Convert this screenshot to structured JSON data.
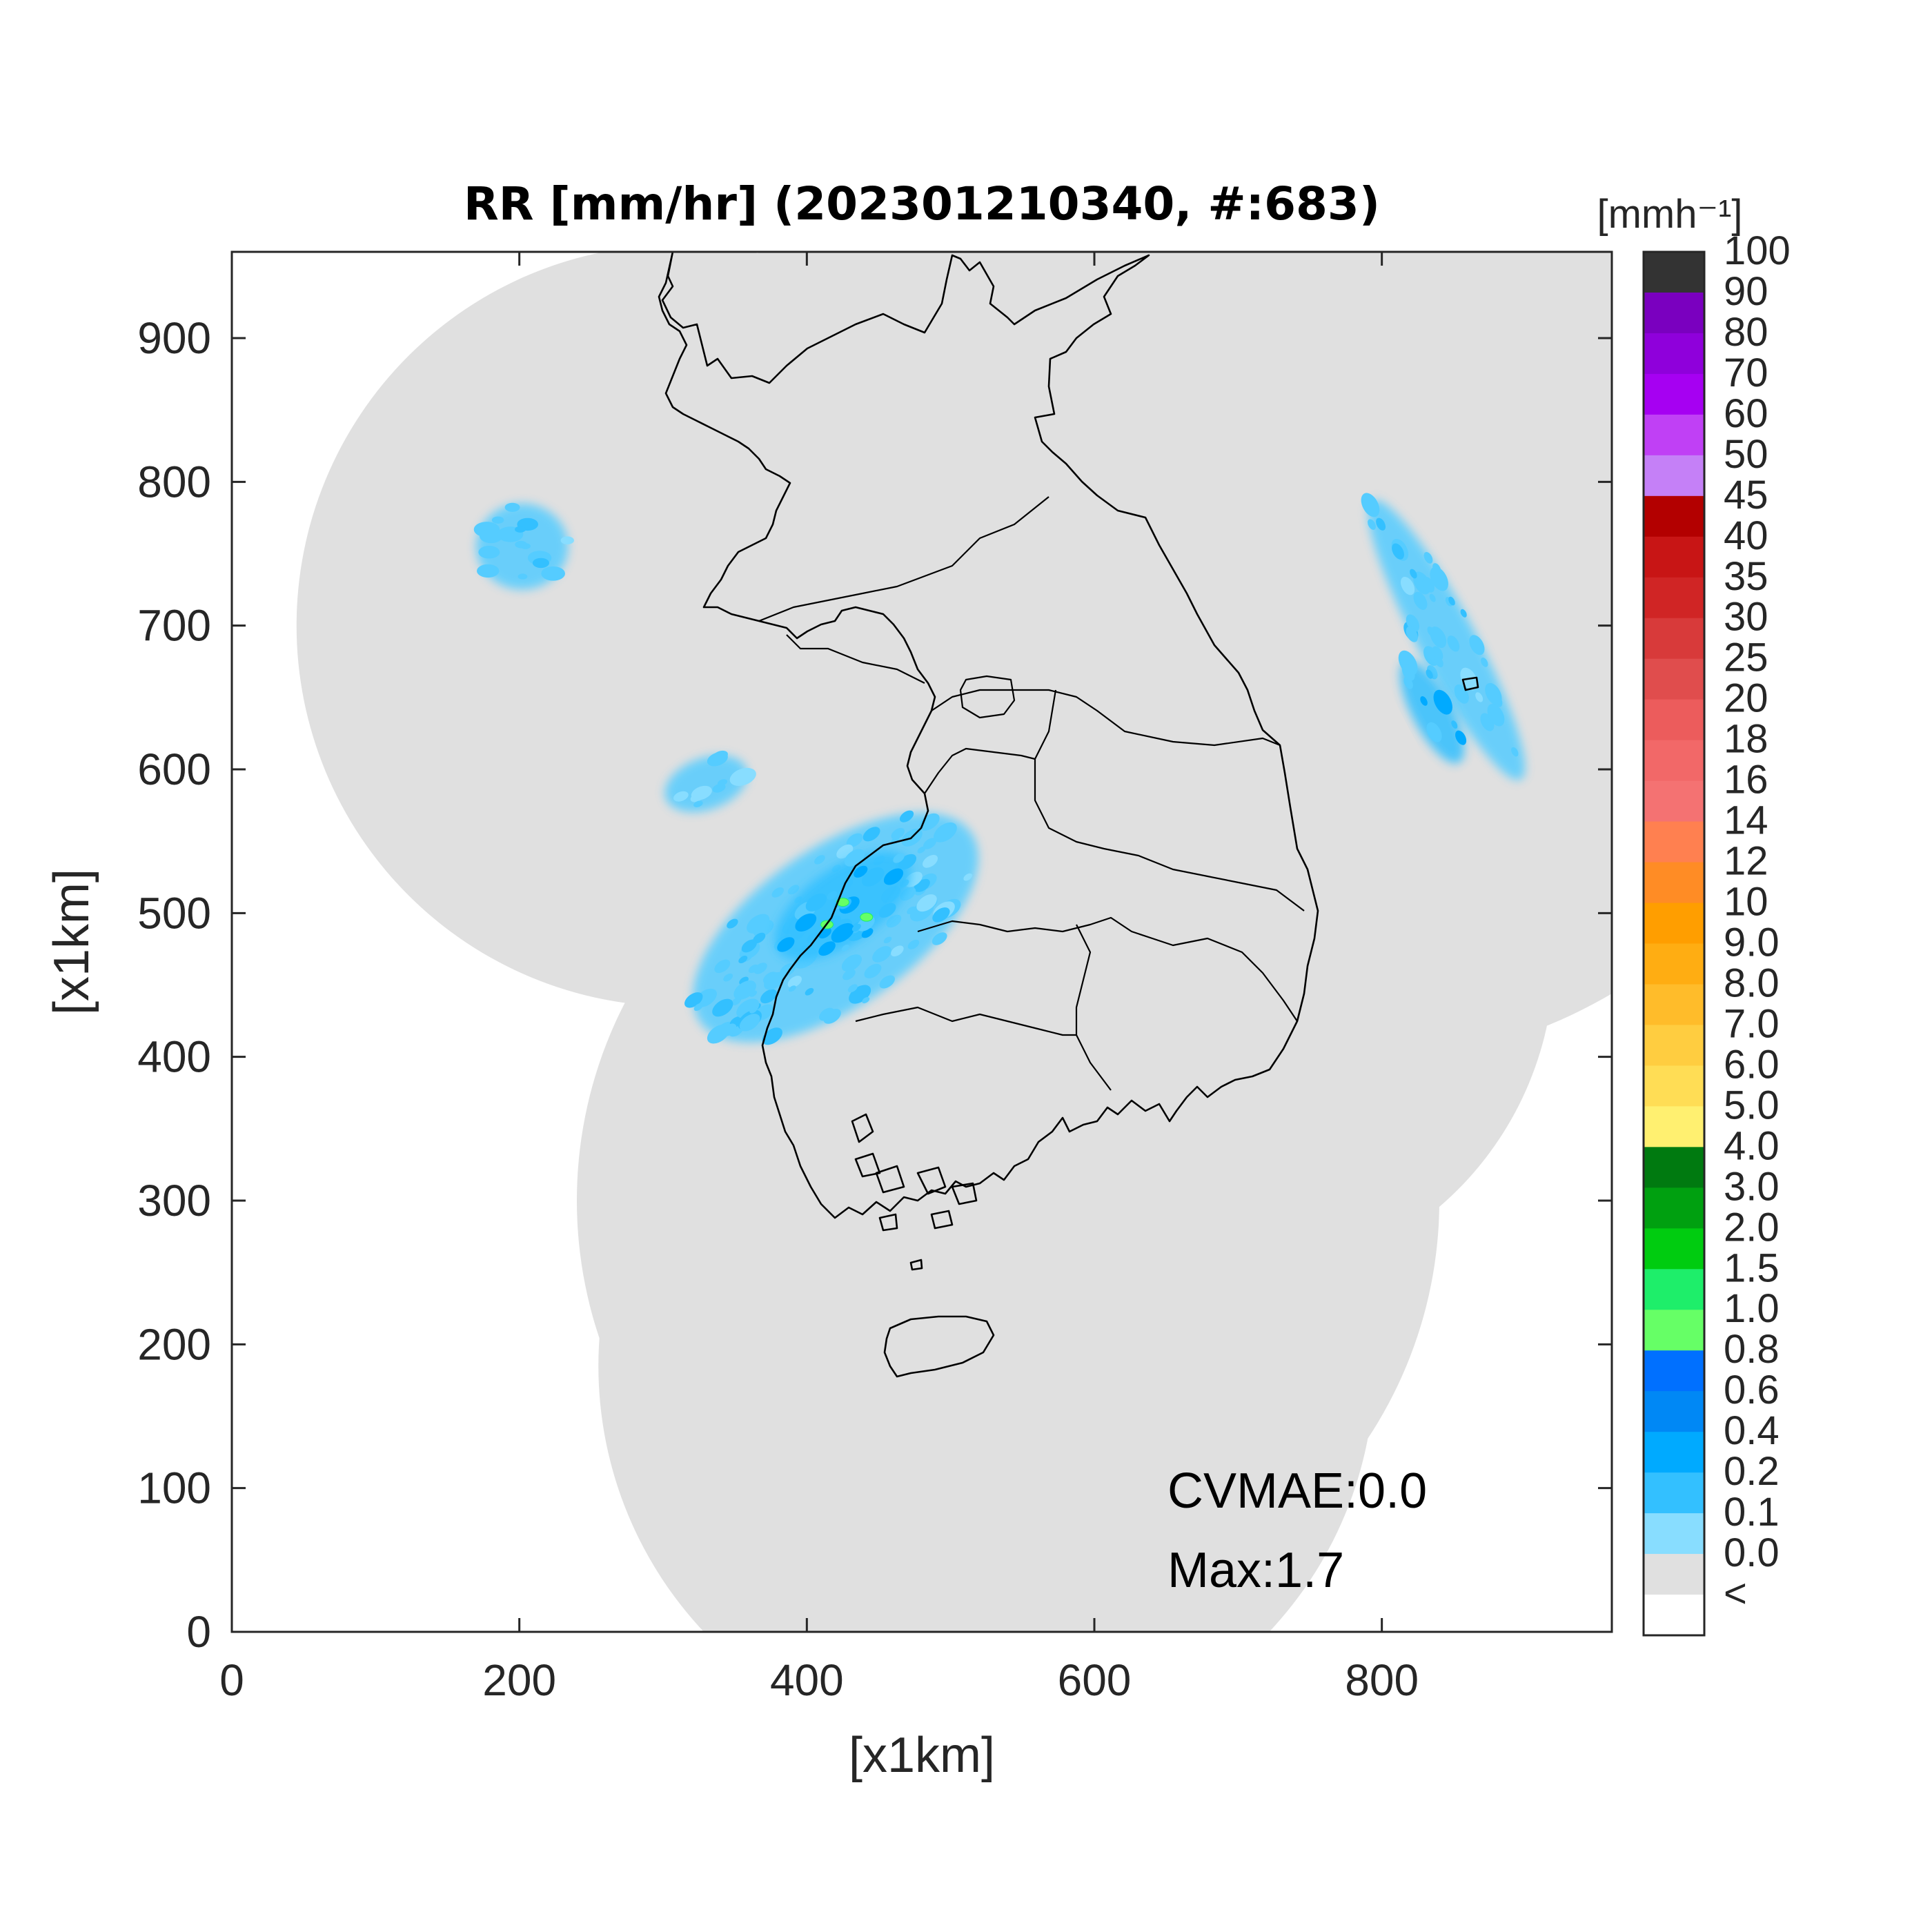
{
  "title": "RR [mm/hr] (202301210340, #:683)",
  "xlabel": "[x1km]",
  "ylabel": "[x1km]",
  "colorbar": {
    "unit_label": "[mmh⁻¹]",
    "labels": [
      "100",
      "90",
      "80",
      "70",
      "60",
      "50",
      "45",
      "40",
      "35",
      "30",
      "25",
      "20",
      "18",
      "16",
      "14",
      "12",
      "10",
      "9.0",
      "8.0",
      "7.0",
      "6.0",
      "5.0",
      "4.0",
      "3.0",
      "2.0",
      "1.5",
      "1.0",
      "0.8",
      "0.6",
      "0.4",
      "0.2",
      "0.1",
      "0.0",
      "<"
    ],
    "colors": [
      "#333333",
      "#7a00bf",
      "#8f00db",
      "#a600f2",
      "#c040f5",
      "#c580f7",
      "#b30000",
      "#c81515",
      "#d02525",
      "#d83a3a",
      "#e04d4d",
      "#ec5c5c",
      "#f26868",
      "#f47272",
      "#ff8050",
      "#ff8c25",
      "#ff9e00",
      "#ffad12",
      "#ffbc2a",
      "#ffcd40",
      "#ffdd55",
      "#fff070",
      "#007a10",
      "#00a010",
      "#00cc10",
      "#1eee6a",
      "#66ff66",
      "#0070ff",
      "#0088f5",
      "#00aaff",
      "#33c0ff",
      "#88ddff",
      "#e0e0e0",
      "#ffffff"
    ]
  },
  "annotations": {
    "cvmae": "CVMAE:0.0",
    "max": "Max:1.7"
  },
  "chart_data": {
    "type": "heatmap",
    "title": "RR [mm/hr] (202301210340, #:683)",
    "xlabel": "[x1km]",
    "ylabel": "[x1km]",
    "xlim": [
      0,
      960
    ],
    "ylim": [
      0,
      960
    ],
    "xticks": [
      0,
      200,
      400,
      600,
      800
    ],
    "yticks": [
      0,
      100,
      200,
      300,
      400,
      500,
      600,
      700,
      800,
      900
    ],
    "colorbar_unit": "[mmh⁻¹]",
    "max_value": 1.7,
    "cvmae": 0.0,
    "grid": false,
    "radar_coverage_circles_km": [
      {
        "cx": 310,
        "cy": 700,
        "r": 265
      },
      {
        "cx": 565,
        "cy": 755,
        "r": 285
      },
      {
        "cx": 780,
        "cy": 750,
        "r": 355
      },
      {
        "cx": 540,
        "cy": 300,
        "r": 300
      },
      {
        "cx": 525,
        "cy": 185,
        "r": 270
      },
      {
        "cx": 690,
        "cy": 470,
        "r": 230
      }
    ],
    "precip_regions_km": [
      {
        "name": "west-sea band",
        "cx": 420,
        "cy": 490,
        "rx": 115,
        "ry": 55,
        "rotation_deg": 35,
        "intensity_mm_hr": 0.3
      },
      {
        "name": "west-sea core",
        "cx": 425,
        "cy": 505,
        "rx": 55,
        "ry": 26,
        "rotation_deg": 35,
        "intensity_mm_hr": 0.5
      },
      {
        "name": "west-sea north cells",
        "cx": 330,
        "cy": 590,
        "rx": 30,
        "ry": 18,
        "rotation_deg": 20,
        "intensity_mm_hr": 0.2
      },
      {
        "name": "northwest cluster",
        "cx": 202,
        "cy": 755,
        "rx": 32,
        "ry": 30,
        "rotation_deg": 0,
        "intensity_mm_hr": 0.3
      },
      {
        "name": "east-sea band",
        "cx": 845,
        "cy": 690,
        "rx": 110,
        "ry": 20,
        "rotation_deg": -62,
        "intensity_mm_hr": 0.3
      },
      {
        "name": "east-sea core",
        "cx": 835,
        "cy": 640,
        "rx": 40,
        "ry": 14,
        "rotation_deg": -62,
        "intensity_mm_hr": 0.5
      }
    ]
  }
}
